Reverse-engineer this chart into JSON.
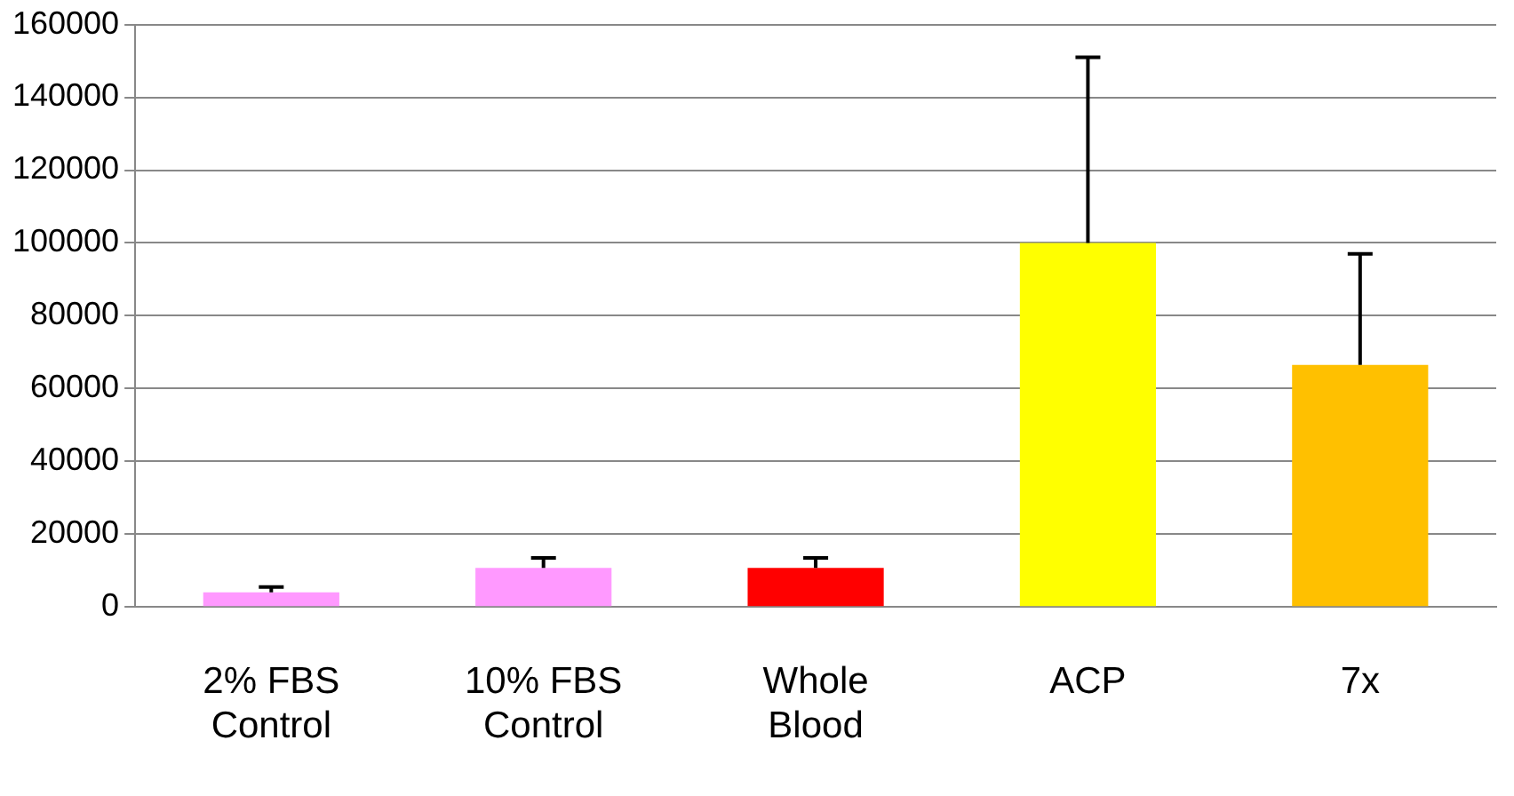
{
  "chart_data": {
    "type": "bar",
    "categories": [
      "2% FBS Control",
      "10% FBS Control",
      "Whole Blood",
      "ACP",
      "7x"
    ],
    "values": [
      4000,
      10700,
      10700,
      100000,
      66500
    ],
    "colors": [
      "#ff99ff",
      "#ff99ff",
      "#ff0000",
      "#ffff00",
      "#ffc000"
    ],
    "errors": [
      [
        4000,
        5500
      ],
      [
        10700,
        13500
      ],
      [
        10700,
        13500
      ],
      [
        100000,
        151000
      ],
      [
        66500,
        97000
      ]
    ],
    "ylim": [
      0,
      160000
    ],
    "yticks": [
      0,
      20000,
      40000,
      60000,
      80000,
      100000,
      120000,
      140000,
      160000
    ],
    "grid": "y",
    "legend": false
  }
}
